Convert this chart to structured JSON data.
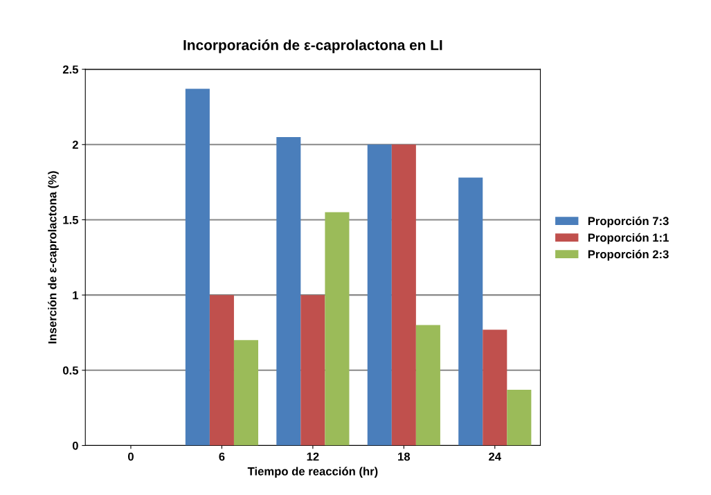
{
  "chart_data": {
    "type": "bar",
    "title": "Incorporación de ε-caprolactona en LI",
    "xlabel": "Tiempo de reacción (hr)",
    "ylabel": "Inserción de ε-caprolactona (%)",
    "categories": [
      "0",
      "6",
      "12",
      "18",
      "24"
    ],
    "series": [
      {
        "name": "Proporción 7:3",
        "color": "#4a7ebb",
        "values": [
          0,
          2.37,
          2.05,
          2.0,
          1.78
        ]
      },
      {
        "name": "Proporción 1:1",
        "color": "#c0504d",
        "values": [
          0,
          1.0,
          1.0,
          2.0,
          0.77
        ]
      },
      {
        "name": "Proporción 2:3",
        "color": "#9bbb59",
        "values": [
          0,
          0.7,
          1.55,
          0.8,
          0.37
        ]
      }
    ],
    "ylim": [
      0,
      2.5
    ],
    "yticks": [
      0,
      0.5,
      1,
      1.5,
      2,
      2.5
    ],
    "grid": "y",
    "legend": "right"
  }
}
